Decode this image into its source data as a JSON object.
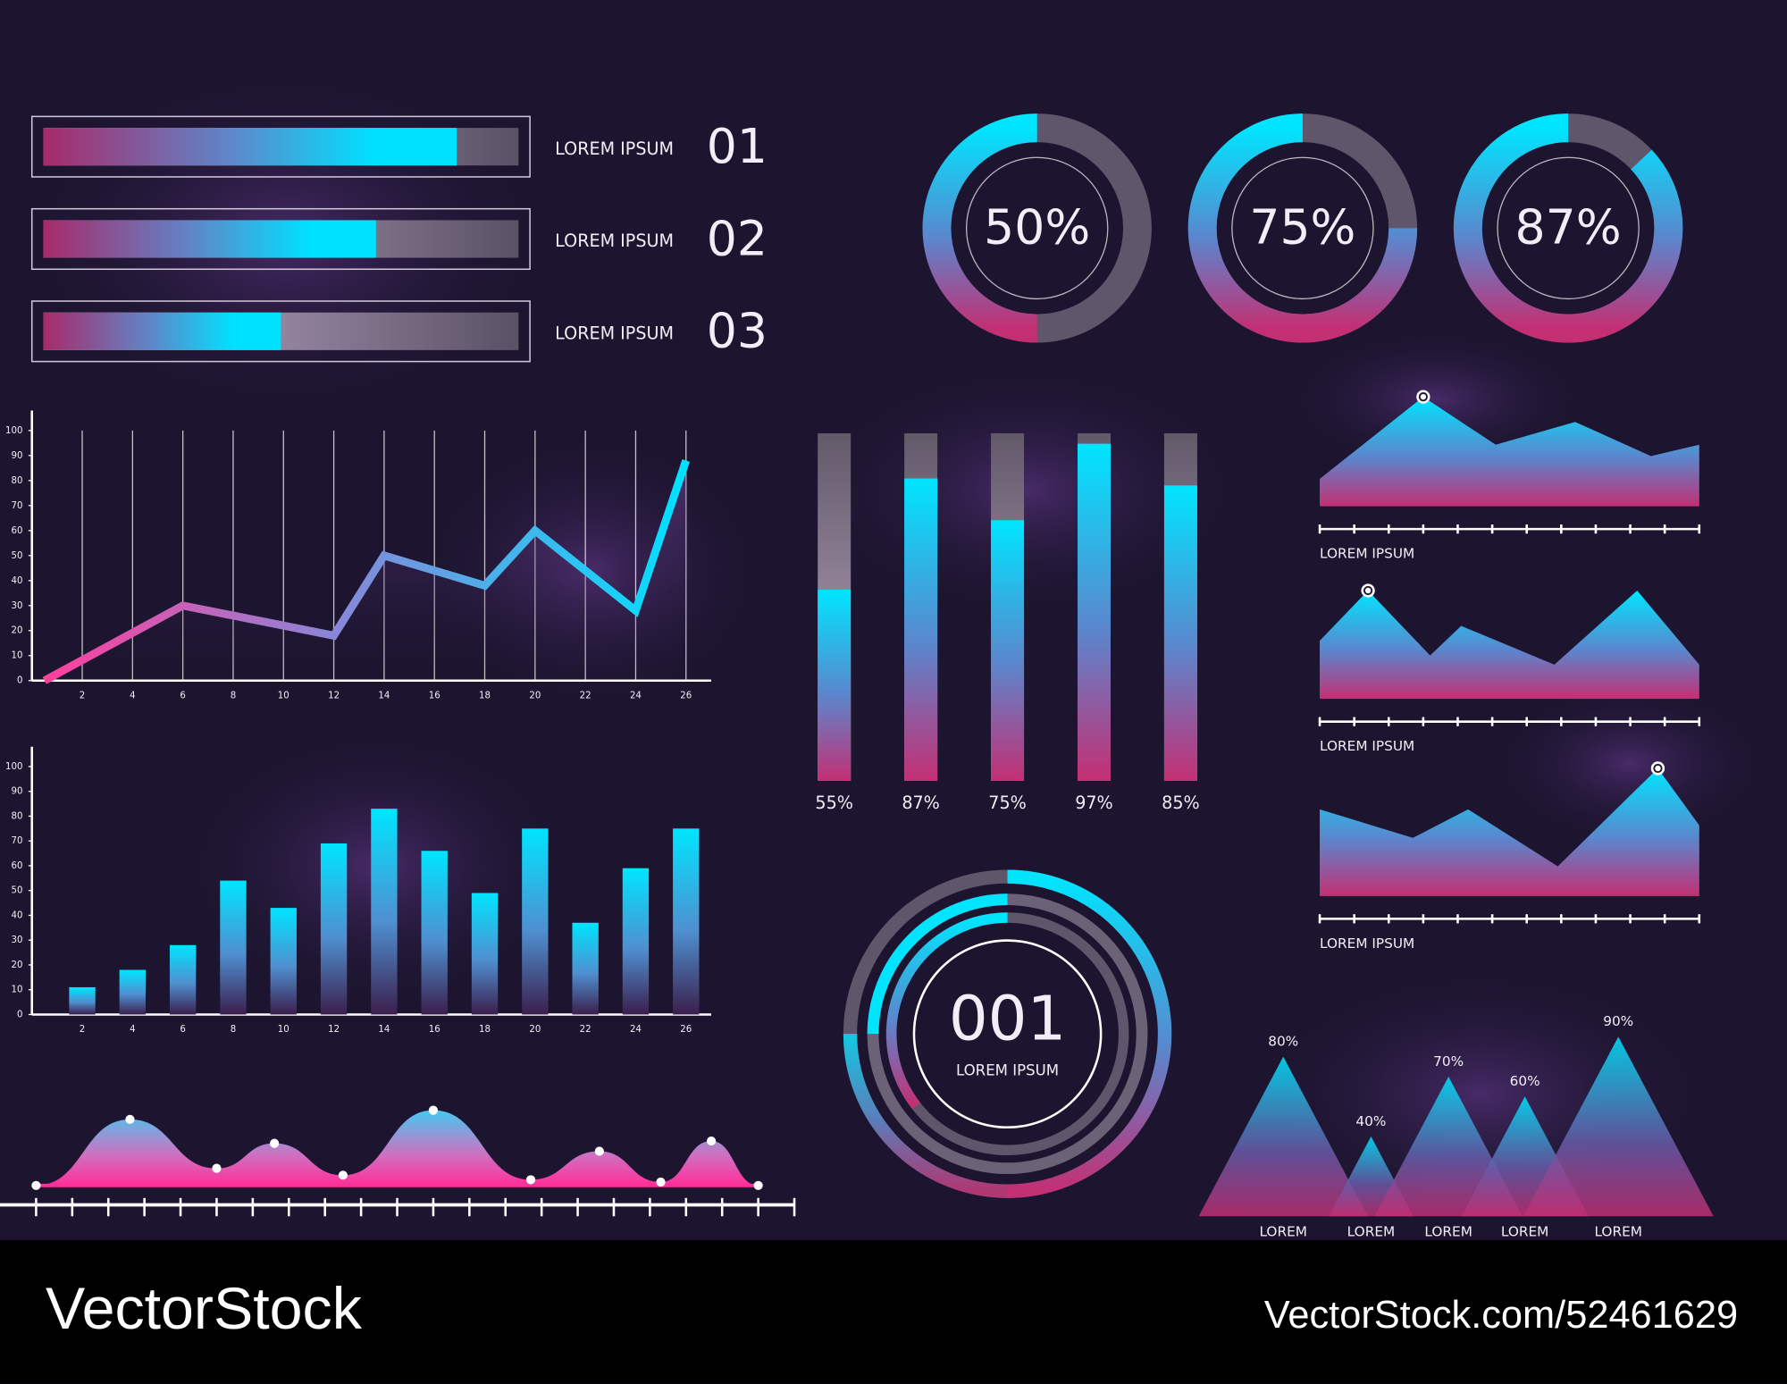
{
  "chart_data": [
    {
      "type": "progress",
      "categories": [
        "01",
        "02",
        "03"
      ],
      "labels": [
        "LOREM IPSUM",
        "LOREM IPSUM",
        "LOREM IPSUM"
      ],
      "values": [
        87,
        70,
        50
      ],
      "xlim": [
        0,
        100
      ]
    },
    {
      "type": "donut",
      "values": [
        50,
        75,
        87
      ],
      "value_labels": [
        "50%",
        "75%",
        "87%"
      ],
      "ylim": [
        0,
        100
      ]
    },
    {
      "type": "line",
      "x": [
        0.5,
        6,
        12,
        14,
        18,
        20,
        24,
        26
      ],
      "values": [
        0,
        30,
        18,
        50,
        38,
        60,
        28,
        88
      ],
      "xlim": [
        0,
        27
      ],
      "ylim": [
        0,
        108
      ],
      "xticks": [
        2,
        4,
        6,
        8,
        10,
        12,
        14,
        16,
        18,
        20,
        22,
        24,
        26
      ],
      "yticks": [
        0,
        10,
        20,
        30,
        40,
        50,
        60,
        70,
        80,
        90,
        100
      ],
      "grid": true
    },
    {
      "type": "bar",
      "x": [
        2,
        4,
        6,
        8,
        10,
        12,
        14,
        16,
        18,
        20,
        22,
        24,
        26
      ],
      "values": [
        11,
        18,
        28,
        54,
        43,
        69,
        83,
        66,
        49,
        75,
        37,
        59,
        75
      ],
      "xlim": [
        0,
        27
      ],
      "ylim": [
        0,
        108
      ],
      "xticks": [
        2,
        4,
        6,
        8,
        10,
        12,
        14,
        16,
        18,
        20,
        22,
        24,
        26
      ],
      "yticks": [
        0,
        10,
        20,
        30,
        40,
        50,
        60,
        70,
        80,
        90,
        100
      ],
      "grid": false
    },
    {
      "type": "column-progress",
      "values": [
        55,
        87,
        75,
        97,
        85
      ],
      "value_labels": [
        "55%",
        "87%",
        "75%",
        "97%",
        "85%"
      ],
      "ylim": [
        0,
        100
      ]
    },
    {
      "type": "area",
      "label": "LOREM IPSUM",
      "x": [
        0,
        3,
        5.1,
        7.4,
        9.6,
        11
      ],
      "values": [
        24,
        96,
        54,
        74,
        44,
        54
      ],
      "xlim": [
        0,
        11
      ],
      "ylim": [
        0,
        115
      ]
    },
    {
      "type": "area",
      "label": "LOREM IPSUM",
      "x": [
        0,
        1.4,
        3.2,
        4.1,
        6.8,
        9.2,
        11
      ],
      "values": [
        51,
        95,
        38,
        64,
        30,
        95,
        30
      ],
      "xlim": [
        0,
        11
      ],
      "ylim": [
        0,
        115
      ]
    },
    {
      "type": "area",
      "label": "LOREM IPSUM",
      "x": [
        0,
        2.7,
        4.3,
        6.9,
        9.8,
        11
      ],
      "values": [
        76,
        51,
        76,
        26,
        112,
        62
      ],
      "xlim": [
        0,
        11
      ],
      "ylim": [
        0,
        115
      ]
    },
    {
      "type": "gauge",
      "title": "001",
      "subtitle": "LOREM IPSUM"
    },
    {
      "type": "triangle",
      "categories": [
        "LOREM",
        "LOREM",
        "LOREM",
        "LOREM",
        "LOREM"
      ],
      "values": [
        80,
        40,
        70,
        60,
        90
      ],
      "value_labels": [
        "80%",
        "40%",
        "70%",
        "60%",
        "90%"
      ],
      "ylim": [
        0,
        100
      ]
    },
    {
      "type": "wave",
      "x": [
        0,
        2.6,
        5.0,
        6.6,
        8.5,
        11.0,
        13.7,
        15.6,
        17.3,
        18.7,
        20
      ],
      "values": [
        0,
        58,
        15,
        37,
        9,
        66,
        5,
        30,
        3,
        39,
        0
      ],
      "xlim": [
        -1,
        21
      ],
      "ylim": [
        0,
        100
      ]
    }
  ],
  "footer": {
    "brand": "VectorStock",
    "url": "VectorStock.com/52461629"
  }
}
